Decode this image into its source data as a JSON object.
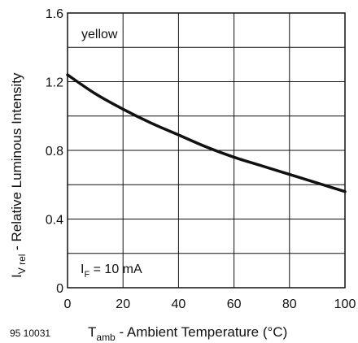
{
  "chart_data": {
    "type": "line",
    "title": "",
    "xlabel": {
      "main": "T",
      "sub": "amb",
      "rest": " - Ambient Temperature (°C)"
    },
    "ylabel": {
      "main": "I",
      "sub": "V rel",
      "rest": " - Relative Luminous Intensity"
    },
    "xlim": [
      0,
      100
    ],
    "ylim": [
      0,
      1.6
    ],
    "x_ticks": [
      0,
      20,
      40,
      60,
      80,
      100
    ],
    "x_tick_labels": [
      "0",
      "20",
      "40",
      "60",
      "80",
      "100"
    ],
    "y_ticks": [
      0,
      0.4,
      0.8,
      1.2,
      1.6
    ],
    "y_tick_labels": [
      "0",
      "0.4",
      "0.8",
      "1.2",
      "1.6"
    ],
    "grid": true,
    "series": [
      {
        "x": [
          0,
          10,
          20,
          30,
          40,
          50,
          60,
          70,
          80,
          90,
          100
        ],
        "y": [
          1.24,
          1.13,
          1.04,
          0.96,
          0.89,
          0.82,
          0.76,
          0.71,
          0.66,
          0.61,
          0.56
        ]
      }
    ],
    "annotations": [
      {
        "id": "color",
        "text": "yellow"
      },
      {
        "id": "current",
        "main": "I",
        "sub": "F",
        "rest": " = 10 mA"
      }
    ],
    "figure_number": "95 10031"
  }
}
